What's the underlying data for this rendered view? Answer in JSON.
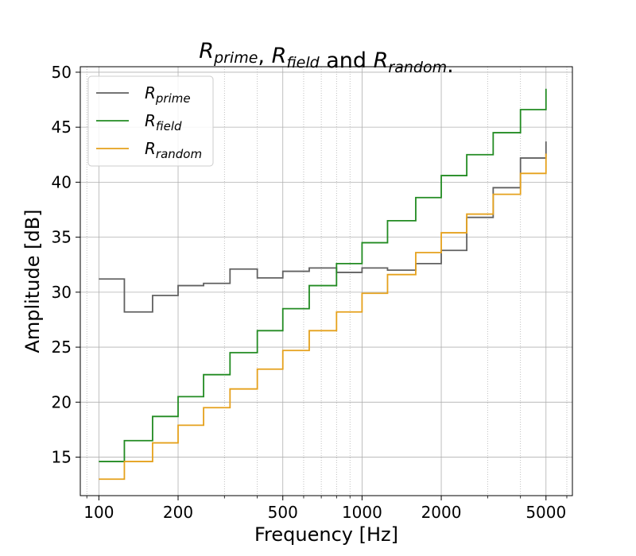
{
  "chart_data": {
    "type": "line",
    "step": "post",
    "title": {
      "parts": [
        {
          "base": "R",
          "sub": "prime"
        },
        {
          "text": ", "
        },
        {
          "base": "R",
          "sub": "field"
        },
        {
          "text": " and "
        },
        {
          "base": "R",
          "sub": "random"
        },
        {
          "text": "."
        }
      ]
    },
    "xlabel": "Frequency [Hz]",
    "ylabel": "Amplitude [dB]",
    "xscale": "log",
    "xlim": [
      85,
      6300
    ],
    "ylim": [
      11.5,
      50.5
    ],
    "xticks": [
      100,
      200,
      500,
      1000,
      2000,
      5000
    ],
    "xtick_labels": [
      "100",
      "200",
      "500",
      "1000",
      "2000",
      "5000"
    ],
    "yticks": [
      15,
      20,
      25,
      30,
      35,
      40,
      45,
      50
    ],
    "ytick_labels": [
      "15",
      "20",
      "25",
      "30",
      "35",
      "40",
      "45",
      "50"
    ],
    "grid": true,
    "legend_position": "top-left",
    "x": [
      100,
      125,
      160,
      200,
      250,
      315,
      400,
      500,
      630,
      800,
      1000,
      1250,
      1600,
      2000,
      2500,
      3150,
      4000,
      5000
    ],
    "series": [
      {
        "base": "R",
        "sub": "prime",
        "color": "#616161",
        "values": [
          31.2,
          28.2,
          29.7,
          30.6,
          30.8,
          32.1,
          31.3,
          31.9,
          32.2,
          31.8,
          32.2,
          32.0,
          32.6,
          33.8,
          36.8,
          39.5,
          42.2,
          43.7
        ]
      },
      {
        "base": "R",
        "sub": "field",
        "color": "#228b22",
        "values": [
          14.6,
          16.5,
          18.7,
          20.5,
          22.5,
          24.5,
          26.5,
          28.5,
          30.6,
          32.6,
          34.5,
          36.5,
          38.6,
          40.6,
          42.5,
          44.5,
          46.6,
          48.5
        ]
      },
      {
        "base": "R",
        "sub": "random",
        "color": "#e5a11c",
        "values": [
          13.0,
          14.6,
          16.3,
          17.9,
          19.5,
          21.2,
          23.0,
          24.7,
          26.5,
          28.2,
          29.9,
          31.6,
          33.6,
          35.4,
          37.1,
          38.9,
          40.8,
          42.6
        ]
      }
    ]
  }
}
